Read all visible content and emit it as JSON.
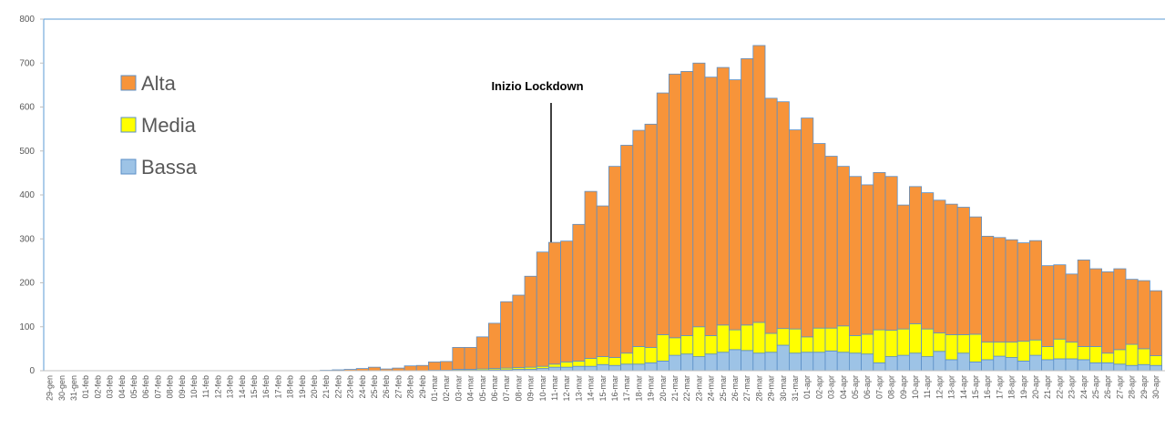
{
  "chart_data": {
    "type": "stacked-bar",
    "annotation": "Inizio Lockdown",
    "legend": "upper left",
    "ylim": [
      0,
      800
    ],
    "yticks": [
      0,
      100,
      200,
      300,
      400,
      500,
      600,
      700,
      800
    ],
    "categories": [
      "29-gen",
      "30-gen",
      "31-gen",
      "01-feb",
      "02-feb",
      "03-feb",
      "04-feb",
      "05-feb",
      "06-feb",
      "07-feb",
      "08-feb",
      "09-feb",
      "10-feb",
      "11-feb",
      "12-feb",
      "13-feb",
      "14-feb",
      "15-feb",
      "16-feb",
      "17-feb",
      "18-feb",
      "19-feb",
      "20-feb",
      "21-feb",
      "22-feb",
      "23-feb",
      "24-feb",
      "25-feb",
      "26-feb",
      "27-feb",
      "28-feb",
      "29-feb",
      "01-mar",
      "02-mar",
      "03-mar",
      "04-mar",
      "05-mar",
      "06-mar",
      "07-mar",
      "08-mar",
      "09-mar",
      "10-mar",
      "11-mar",
      "12-mar",
      "13-mar",
      "14-mar",
      "15-mar",
      "16-mar",
      "17-mar",
      "18-mar",
      "19-mar",
      "20-mar",
      "21-mar",
      "22-mar",
      "23-mar",
      "24-mar",
      "25-mar",
      "26-mar",
      "27-mar",
      "28-mar",
      "29-mar",
      "30-mar",
      "31-mar",
      "01-apr",
      "02-apr",
      "03-apr",
      "04-apr",
      "05-apr",
      "06-apr",
      "07-apr",
      "08-apr",
      "09-apr",
      "10-apr",
      "11-apr",
      "12-apr",
      "13-apr",
      "14-apr",
      "15-apr",
      "16-apr",
      "17-apr",
      "18-apr",
      "19-apr",
      "20-apr",
      "21-apr",
      "22-apr",
      "23-apr",
      "24-apr",
      "25-apr",
      "26-apr",
      "27-apr",
      "28-apr",
      "29-apr",
      "30-apr"
    ],
    "series": [
      {
        "name": "Bassa",
        "color": "#9dc3e6",
        "values": [
          0,
          0,
          0,
          0,
          0,
          0,
          0,
          0,
          0,
          0,
          0,
          0,
          0,
          0,
          0,
          0,
          0,
          0,
          0,
          0,
          0,
          0,
          0,
          0,
          0,
          0,
          0,
          0,
          0,
          0,
          0,
          0,
          0,
          0,
          1,
          1,
          1,
          2,
          2,
          3,
          3,
          5,
          8,
          8,
          10,
          10,
          14,
          12,
          15,
          15,
          18,
          22,
          35,
          38,
          32,
          38,
          42,
          48,
          46,
          40,
          42,
          58,
          40,
          42,
          42,
          45,
          42,
          40,
          38,
          18,
          32,
          35,
          40,
          32,
          44,
          25,
          40,
          20,
          25,
          33,
          30,
          22,
          35,
          25,
          27,
          27,
          25,
          18,
          18,
          15,
          12,
          14,
          12
        ]
      },
      {
        "name": "Media",
        "color": "#ffff00",
        "values": [
          0,
          0,
          0,
          0,
          0,
          0,
          0,
          0,
          0,
          0,
          0,
          0,
          0,
          0,
          0,
          0,
          0,
          0,
          0,
          0,
          0,
          0,
          0,
          0,
          0,
          0,
          0,
          0,
          0,
          0,
          0,
          0,
          1,
          1,
          2,
          2,
          3,
          3,
          4,
          4,
          5,
          5,
          7,
          12,
          12,
          18,
          18,
          18,
          25,
          40,
          35,
          60,
          40,
          42,
          68,
          42,
          62,
          45,
          58,
          70,
          43,
          38,
          55,
          35,
          55,
          52,
          60,
          40,
          45,
          75,
          60,
          60,
          67,
          63,
          42,
          57,
          42,
          63,
          40,
          32,
          35,
          45,
          35,
          30,
          45,
          38,
          30,
          37,
          22,
          33,
          48,
          36,
          22
        ]
      },
      {
        "name": "Alta",
        "color": "#f7943a",
        "values": [
          0,
          0,
          0,
          0,
          0,
          0,
          0,
          0,
          0,
          0,
          0,
          0,
          0,
          0,
          0,
          0,
          0,
          0,
          0,
          0,
          0,
          0,
          0,
          1,
          2,
          3,
          5,
          8,
          4,
          6,
          11,
          12,
          19,
          20,
          50,
          50,
          73,
          103,
          151,
          165,
          207,
          260,
          277,
          275,
          311,
          380,
          343,
          435,
          473,
          492,
          508,
          550,
          600,
          601,
          600,
          588,
          586,
          569,
          606,
          630,
          535,
          516,
          453,
          498,
          420,
          391,
          363,
          362,
          340,
          358,
          350,
          282,
          312,
          310,
          302,
          297,
          290,
          267,
          241,
          238,
          233,
          224,
          226,
          184,
          169,
          155,
          197,
          177,
          185,
          184,
          148,
          155,
          148
        ]
      }
    ]
  }
}
